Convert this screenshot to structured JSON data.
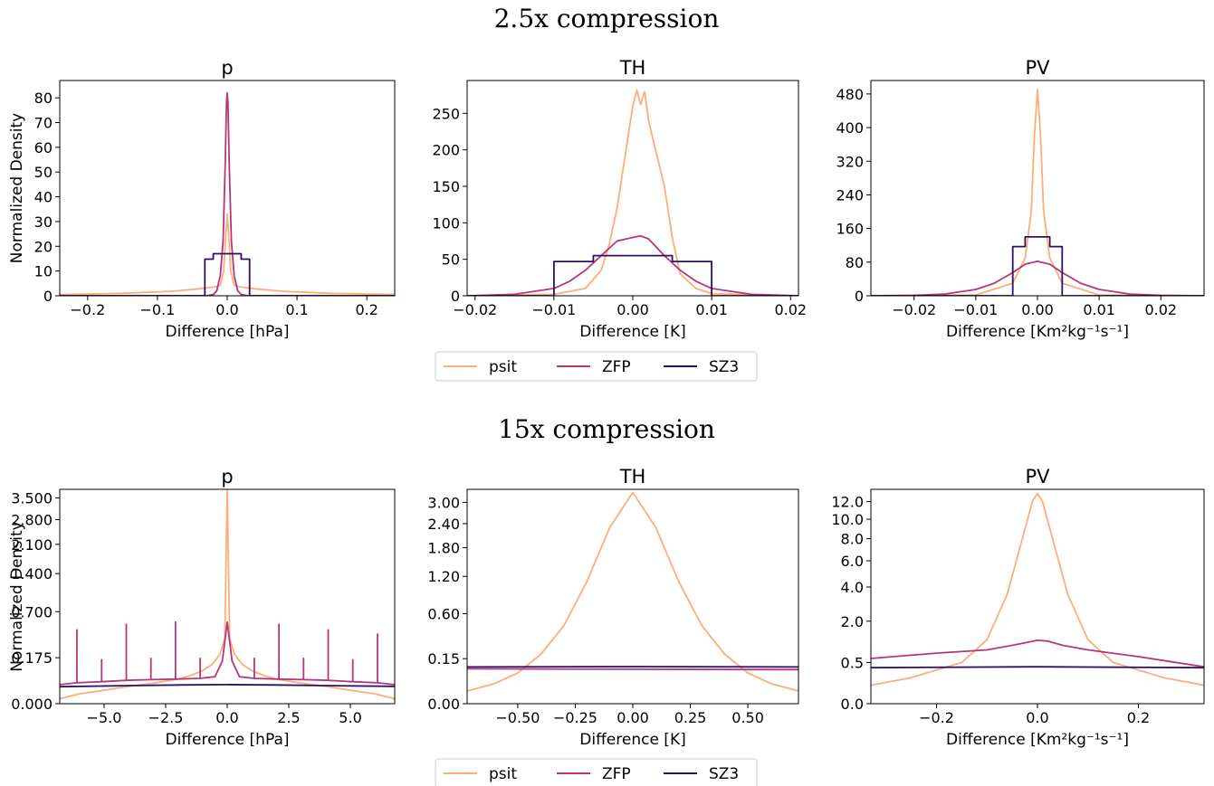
{
  "figure": {
    "row_titles": [
      "2.5x compression",
      "15x compression"
    ],
    "legend": {
      "entries": [
        {
          "name": "psit",
          "color": "#fcae7a"
        },
        {
          "name": "ZFP",
          "color": "#b5367a"
        },
        {
          "name": "SZ3",
          "color": "#2c1160"
        }
      ]
    }
  },
  "chart_data": [
    {
      "type": "line",
      "row": 0,
      "col": 0,
      "title": "p",
      "xlabel": "Difference [hPa]",
      "ylabel": "Normalized Density",
      "xlim": [
        -0.24,
        0.24
      ],
      "ylim": [
        0,
        87
      ],
      "yscale": "linear",
      "xticks": [
        -0.2,
        -0.1,
        0.0,
        0.1,
        0.2
      ],
      "xtick_labels": [
        "−0.2",
        "−0.1",
        "0.0",
        "0.1",
        "0.2"
      ],
      "yticks": [
        0,
        10,
        20,
        30,
        40,
        50,
        60,
        70,
        80
      ],
      "ytick_labels": [
        "0",
        "10",
        "20",
        "30",
        "40",
        "50",
        "60",
        "70",
        "80"
      ],
      "series": [
        {
          "name": "psit",
          "x": [
            -0.24,
            -0.15,
            -0.08,
            -0.04,
            -0.02,
            -0.01,
            -0.005,
            -0.002,
            0,
            0.002,
            0.005,
            0.01,
            0.02,
            0.04,
            0.08,
            0.15,
            0.24
          ],
          "y": [
            0.5,
            1.0,
            1.8,
            2.8,
            3.5,
            4.2,
            10,
            25,
            33,
            25,
            10,
            4.2,
            3.5,
            2.8,
            1.8,
            1.0,
            0.5
          ]
        },
        {
          "name": "ZFP",
          "x": [
            -0.24,
            -0.03,
            -0.02,
            -0.015,
            -0.01,
            -0.006,
            -0.003,
            -0.001,
            0,
            0.001,
            0.003,
            0.006,
            0.01,
            0.015,
            0.02,
            0.03,
            0.24
          ],
          "y": [
            0,
            0,
            0.5,
            2,
            8,
            22,
            52,
            78,
            82,
            78,
            52,
            22,
            8,
            2,
            0.5,
            0,
            0
          ]
        },
        {
          "name": "SZ3",
          "x": [
            -0.24,
            -0.032,
            -0.032,
            -0.02,
            -0.02,
            0.02,
            0.02,
            0.032,
            0.032,
            0.24
          ],
          "y": [
            0,
            0,
            14.8,
            14.8,
            17,
            17,
            14.8,
            14.8,
            0,
            0
          ]
        }
      ]
    },
    {
      "type": "line",
      "row": 0,
      "col": 1,
      "title": "TH",
      "xlabel": "Difference [K]",
      "xlim": [
        -0.021,
        0.021
      ],
      "ylim": [
        0,
        295
      ],
      "yscale": "linear",
      "xticks": [
        -0.02,
        -0.01,
        0.0,
        0.01,
        0.02
      ],
      "xtick_labels": [
        "−0.02",
        "−0.01",
        "0.00",
        "0.01",
        "0.02"
      ],
      "yticks": [
        0,
        50,
        100,
        150,
        200,
        250
      ],
      "ytick_labels": [
        "0",
        "50",
        "100",
        "150",
        "200",
        "250"
      ],
      "series": [
        {
          "name": "psit",
          "x": [
            -0.021,
            -0.01,
            -0.006,
            -0.004,
            -0.003,
            -0.002,
            -0.001,
            0,
            0.0005,
            0.001,
            0.0015,
            0.002,
            0.003,
            0.004,
            0.005,
            0.006,
            0.008,
            0.01,
            0.021
          ],
          "y": [
            0,
            2,
            10,
            35,
            70,
            120,
            190,
            260,
            282,
            262,
            280,
            240,
            195,
            150,
            80,
            30,
            10,
            3,
            0
          ]
        },
        {
          "name": "ZFP",
          "x": [
            -0.021,
            -0.015,
            -0.01,
            -0.008,
            -0.006,
            -0.004,
            -0.002,
            0,
            0.001,
            0.002,
            0.004,
            0.006,
            0.008,
            0.01,
            0.015,
            0.021
          ],
          "y": [
            0,
            2,
            10,
            20,
            35,
            55,
            75,
            80,
            82,
            78,
            55,
            35,
            20,
            10,
            2,
            0
          ]
        },
        {
          "name": "SZ3",
          "x": [
            -0.021,
            -0.01,
            -0.01,
            -0.005,
            -0.005,
            0.005,
            0.005,
            0.01,
            0.01,
            0.021
          ],
          "y": [
            0,
            0,
            47,
            47,
            55,
            55,
            47,
            47,
            0,
            0
          ]
        }
      ]
    },
    {
      "type": "line",
      "row": 0,
      "col": 2,
      "title": "PV",
      "xlabel": "Difference [Km²kg⁻¹s⁻¹]",
      "xlim": [
        -0.027,
        0.027
      ],
      "ylim": [
        0,
        512
      ],
      "yscale": "linear",
      "xticks": [
        -0.02,
        -0.01,
        0.0,
        0.01,
        0.02
      ],
      "xtick_labels": [
        "−0.02",
        "−0.01",
        "0.00",
        "0.01",
        "0.02"
      ],
      "yticks": [
        0,
        80,
        160,
        240,
        320,
        400,
        480
      ],
      "ytick_labels": [
        "0",
        "80",
        "160",
        "240",
        "320",
        "400",
        "480"
      ],
      "series": [
        {
          "name": "psit",
          "x": [
            -0.027,
            -0.01,
            -0.004,
            -0.002,
            -0.001,
            -0.0005,
            0,
            0.0005,
            0.001,
            0.002,
            0.004,
            0.01,
            0.027
          ],
          "y": [
            0,
            2,
            30,
            90,
            200,
            380,
            490,
            380,
            200,
            90,
            30,
            2,
            0
          ]
        },
        {
          "name": "ZFP",
          "x": [
            -0.027,
            -0.02,
            -0.015,
            -0.01,
            -0.007,
            -0.004,
            -0.002,
            0,
            0.002,
            0.004,
            0.007,
            0.01,
            0.015,
            0.02,
            0.027
          ],
          "y": [
            0,
            1,
            4,
            15,
            30,
            55,
            75,
            82,
            75,
            55,
            30,
            15,
            4,
            1,
            0
          ]
        },
        {
          "name": "SZ3",
          "x": [
            -0.027,
            -0.004,
            -0.004,
            -0.002,
            -0.002,
            0.002,
            0.002,
            0.004,
            0.004,
            0.027
          ],
          "y": [
            0,
            0,
            117,
            117,
            140,
            140,
            117,
            117,
            0,
            0
          ]
        }
      ]
    },
    {
      "type": "line",
      "row": 1,
      "col": 0,
      "title": "p",
      "xlabel": "Difference [hPa]",
      "ylabel": "Normalized Density",
      "xlim": [
        -6.8,
        6.8
      ],
      "ylim": [
        0,
        3.8
      ],
      "yscale": "sqrt",
      "xticks": [
        -5,
        -2.5,
        0,
        2.5,
        5
      ],
      "xtick_labels": [
        "−5.0",
        "−2.5",
        "0.0",
        "2.5",
        "5.0"
      ],
      "yticks": [
        0,
        0.175,
        0.7,
        1.4,
        2.1,
        2.8,
        3.5
      ],
      "ytick_labels": [
        "0.000",
        "0.175",
        "0.700",
        "1.400",
        "2.100",
        "2.800",
        "3.500"
      ],
      "series": [
        {
          "name": "psit",
          "x": [
            -6.8,
            -6,
            -5,
            -4,
            -3,
            -2,
            -1.5,
            -1,
            -0.6,
            -0.3,
            -0.1,
            0,
            0.1,
            0.3,
            0.6,
            1,
            1.5,
            2,
            3,
            4,
            5,
            6,
            6.8
          ],
          "y": [
            0.002,
            0.008,
            0.015,
            0.025,
            0.035,
            0.05,
            0.065,
            0.09,
            0.13,
            0.2,
            0.35,
            3.8,
            0.35,
            0.2,
            0.13,
            0.09,
            0.065,
            0.05,
            0.035,
            0.025,
            0.015,
            0.008,
            0.002
          ]
        },
        {
          "name": "ZFP",
          "x": [
            -6.8,
            -6.1,
            -6.1,
            -6.1,
            -5.1,
            -5.1,
            -5.1,
            -4.1,
            -4.1,
            -4.1,
            -3.1,
            -3.1,
            -3.1,
            -2.1,
            -2.1,
            -2.1,
            -1.1,
            -1.1,
            -1.1,
            -0.5,
            -0.2,
            0,
            0.2,
            0.5,
            1.1,
            1.1,
            1.1,
            2.1,
            2.1,
            2.1,
            3.1,
            3.1,
            3.1,
            4.1,
            4.1,
            4.1,
            5.1,
            5.1,
            5.1,
            6.1,
            6.1,
            6.1,
            6.8
          ],
          "y": [
            0.03,
            0.036,
            0.45,
            0.036,
            0.04,
            0.16,
            0.04,
            0.045,
            0.52,
            0.045,
            0.048,
            0.17,
            0.048,
            0.05,
            0.55,
            0.05,
            0.053,
            0.17,
            0.053,
            0.06,
            0.15,
            0.55,
            0.15,
            0.06,
            0.053,
            0.17,
            0.053,
            0.05,
            0.52,
            0.05,
            0.048,
            0.17,
            0.048,
            0.045,
            0.45,
            0.045,
            0.04,
            0.16,
            0.04,
            0.036,
            0.4,
            0.036,
            0.03
          ]
        },
        {
          "name": "SZ3",
          "x": [
            -6.8,
            -4,
            -2,
            0,
            2,
            4,
            6.8
          ],
          "y": [
            0.024,
            0.027,
            0.029,
            0.03,
            0.029,
            0.027,
            0.025
          ]
        }
      ]
    },
    {
      "type": "line",
      "row": 1,
      "col": 1,
      "title": "TH",
      "xlabel": "Difference [K]",
      "xlim": [
        -0.72,
        0.72
      ],
      "ylim": [
        0,
        3.4
      ],
      "yscale": "sqrt",
      "xticks": [
        -0.5,
        -0.25,
        0,
        0.25,
        0.5
      ],
      "xtick_labels": [
        "−0.50",
        "−0.25",
        "0.00",
        "0.25",
        "0.50"
      ],
      "yticks": [
        0,
        0.15,
        0.6,
        1.2,
        1.8,
        2.4,
        3.0
      ],
      "ytick_labels": [
        "0.00",
        "0.15",
        "0.60",
        "1.20",
        "1.80",
        "2.40",
        "3.00"
      ],
      "series": [
        {
          "name": "psit",
          "x": [
            -0.72,
            -0.6,
            -0.5,
            -0.4,
            -0.3,
            -0.2,
            -0.1,
            0,
            0.1,
            0.2,
            0.3,
            0.4,
            0.5,
            0.6,
            0.72
          ],
          "y": [
            0.012,
            0.03,
            0.07,
            0.18,
            0.45,
            1.1,
            2.3,
            3.3,
            2.3,
            1.1,
            0.45,
            0.18,
            0.07,
            0.03,
            0.012
          ]
        },
        {
          "name": "ZFP",
          "x": [
            -0.72,
            0,
            0.72
          ],
          "y": [
            0.09,
            0.088,
            0.086
          ]
        },
        {
          "name": "SZ3",
          "x": [
            -0.72,
            0,
            0.72
          ],
          "y": [
            0.1,
            0.102,
            0.1
          ]
        }
      ]
    },
    {
      "type": "line",
      "row": 1,
      "col": 2,
      "title": "PV",
      "xlabel": "Difference [Km²kg⁻¹s⁻¹]",
      "xlim": [
        -0.33,
        0.33
      ],
      "ylim": [
        0,
        13.5
      ],
      "yscale": "sqrt",
      "xticks": [
        -0.2,
        0,
        0.2
      ],
      "xtick_labels": [
        "−0.2",
        "0.0",
        "0.2"
      ],
      "yticks": [
        0,
        0.5,
        2,
        4,
        6,
        8,
        10,
        12
      ],
      "ytick_labels": [
        "0.0",
        "0.5",
        "2.0",
        "4.0",
        "6.0",
        "8.0",
        "10.0",
        "12.0"
      ],
      "series": [
        {
          "name": "psit",
          "x": [
            -0.33,
            -0.25,
            -0.15,
            -0.1,
            -0.06,
            -0.03,
            -0.01,
            0,
            0.01,
            0.03,
            0.06,
            0.1,
            0.15,
            0.25,
            0.33
          ],
          "y": [
            0.1,
            0.2,
            0.5,
            1.2,
            3.5,
            8,
            12,
            13,
            12,
            8,
            3.5,
            1.2,
            0.5,
            0.2,
            0.1
          ]
        },
        {
          "name": "ZFP",
          "x": [
            -0.33,
            -0.2,
            -0.1,
            -0.05,
            0,
            0.02,
            0.05,
            0.1,
            0.2,
            0.33
          ],
          "y": [
            0.6,
            0.75,
            0.85,
            1.0,
            1.18,
            1.15,
            1.0,
            0.85,
            0.65,
            0.4
          ]
        },
        {
          "name": "SZ3",
          "x": [
            -0.33,
            0,
            0.33
          ],
          "y": [
            0.38,
            0.4,
            0.38
          ]
        }
      ]
    }
  ]
}
